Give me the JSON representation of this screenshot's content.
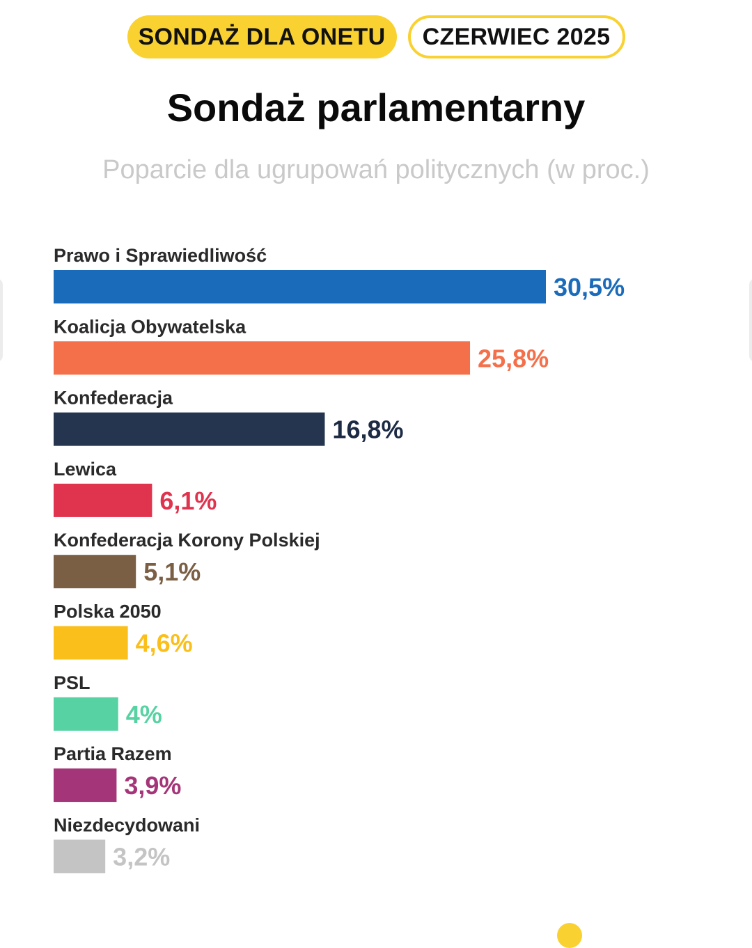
{
  "header": {
    "badge_source": "SONDAŻ DLA ONETU",
    "badge_date": "CZERWIEC 2025",
    "title": "Sondaż parlamentarny",
    "subtitle": "Poparcie dla ugrupowań politycznych (w proc.)"
  },
  "colors": {
    "accent_yellow": "#f9d130"
  },
  "chart_data": {
    "type": "bar",
    "orientation": "horizontal",
    "title": "Sondaż parlamentarny",
    "subtitle": "Poparcie dla ugrupowań politycznych (w proc.)",
    "categories": [
      "Prawo i Sprawiedliwość",
      "Koalicja Obywatelska",
      "Konfederacja",
      "Lewica",
      "Konfederacja Korony Polskiej",
      "Polska 2050",
      "PSL",
      "Partia Razem",
      "Niezdecydowani"
    ],
    "values": [
      30.5,
      25.8,
      16.8,
      6.1,
      5.1,
      4.6,
      4,
      3.9,
      3.2
    ],
    "value_labels": [
      "30,5%",
      "25,8%",
      "16,8%",
      "6,1%",
      "5,1%",
      "4,6%",
      "4%",
      "3,9%",
      "3,2%"
    ],
    "colors": [
      "#1b6bbb",
      "#f4704a",
      "#25344f",
      "#e0334e",
      "#7b5f45",
      "#fbbf1b",
      "#57d2a3",
      "#a53579",
      "#c4c4c4"
    ],
    "label_colors": [
      "#1b6bbb",
      "#f4704a",
      "#1c2a44",
      "#e0334e",
      "#7b5f45",
      "#fbbf1b",
      "#57d2a3",
      "#a53579",
      "#c4c4c4"
    ],
    "xlim": [
      0,
      30.5
    ],
    "grid": false,
    "legend": "none"
  }
}
